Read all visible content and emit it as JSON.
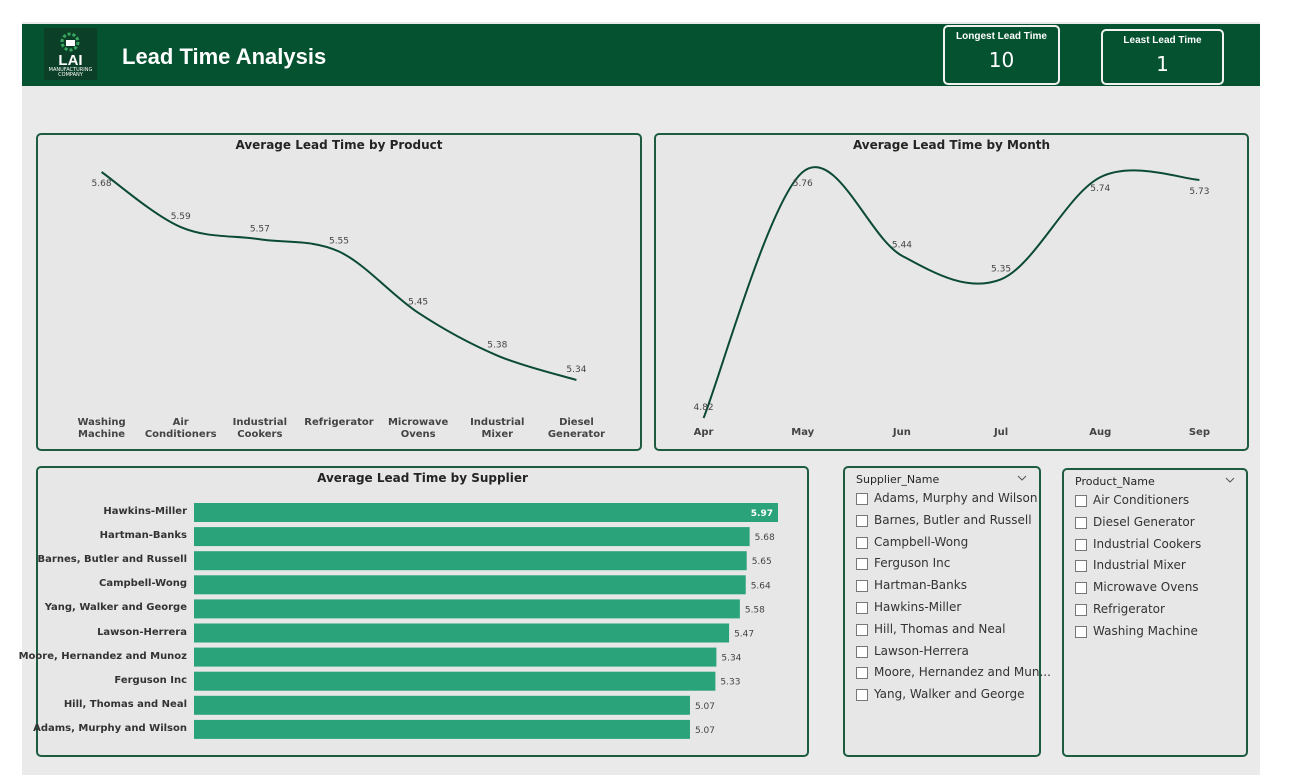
{
  "header": {
    "title": "Lead Time Analysis",
    "logo_text": "LAI",
    "logo_subtext": "MANUFACTURING COMPANY"
  },
  "kpis": [
    {
      "label": "Longest Lead Time",
      "value": 10
    },
    {
      "label": "Least Lead Time",
      "value": 1
    }
  ],
  "chart_data": [
    {
      "type": "line",
      "title": "Average Lead Time by Product",
      "categories": [
        "Washing Machine",
        "Air Conditioners",
        "Industrial Cookers",
        "Refrigerator",
        "Microwave Ovens",
        "Industrial Mixer",
        "Diesel Generator"
      ],
      "values": [
        5.68,
        5.59,
        5.57,
        5.55,
        5.45,
        5.38,
        5.34
      ],
      "color": "#0b4a33"
    },
    {
      "type": "line",
      "title": "Average Lead Time by Month",
      "categories": [
        "Apr",
        "May",
        "Jun",
        "Jul",
        "Aug",
        "Sep"
      ],
      "values": [
        4.82,
        5.76,
        5.44,
        5.35,
        5.74,
        5.73
      ],
      "color": "#0b4a33"
    },
    {
      "type": "hbar",
      "title": "Average Lead Time by Supplier",
      "categories": [
        "Hawkins-Miller",
        "Hartman-Banks",
        "Barnes, Butler and Russell",
        "Campbell-Wong",
        "Yang, Walker and George",
        "Lawson-Herrera",
        "Moore, Hernandez and Munoz",
        "Ferguson Inc",
        "Hill, Thomas and Neal",
        "Adams, Murphy and Wilson"
      ],
      "values": [
        5.97,
        5.68,
        5.65,
        5.64,
        5.58,
        5.47,
        5.34,
        5.33,
        5.07,
        5.07
      ],
      "color": "#2aa37a"
    }
  ],
  "slicers": [
    {
      "title": "Supplier_Name",
      "items": [
        "Adams, Murphy and Wilson",
        "Barnes, Butler and Russell",
        "Campbell-Wong",
        "Ferguson Inc",
        "Hartman-Banks",
        "Hawkins-Miller",
        "Hill, Thomas and Neal",
        "Lawson-Herrera",
        "Moore, Hernandez and Mun...",
        "Yang, Walker and George"
      ]
    },
    {
      "title": "Product_Name",
      "items": [
        "Air Conditioners",
        "Diesel Generator",
        "Industrial Cookers",
        "Industrial Mixer",
        "Microwave Ovens",
        "Refrigerator",
        "Washing Machine"
      ]
    }
  ]
}
